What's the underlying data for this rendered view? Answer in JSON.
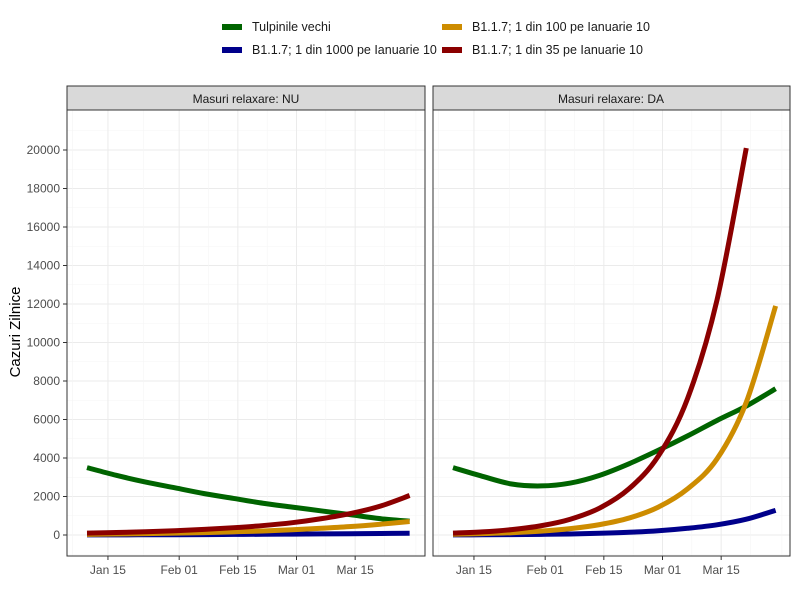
{
  "chart_data": {
    "type": "line",
    "title": "",
    "xlabel": "",
    "ylabel": "Cazuri Zilnice",
    "ylim": [
      -1000,
      21000
    ],
    "yticks": [
      0,
      2000,
      4000,
      6000,
      8000,
      10000,
      12000,
      14000,
      16000,
      18000,
      20000
    ],
    "xtick_labels": [
      "Jan 15",
      "Feb 01",
      "Feb 15",
      "Mar 01",
      "Mar 15"
    ],
    "xtick_days": [
      5,
      22,
      36,
      50,
      64
    ],
    "x_origin": "Jan 10",
    "x_unit": "days since Jan 10",
    "grid": true,
    "legend_position": "top",
    "legend": [
      {
        "name": "Tulpinile vechi",
        "color": "#006400"
      },
      {
        "name": "B1.1.7; 1 din 1000 pe Ianuarie 10",
        "color": "#00008B"
      },
      {
        "name": "B1.1.7; 1 din 100 pe Ianuarie 10",
        "color": "#CD8C00"
      },
      {
        "name": "B1.1.7; 1 din 35 pe Ianuarie 10",
        "color": "#8B0000"
      }
    ],
    "panels": [
      {
        "strip": "Masuri relaxare: NU",
        "x": [
          0,
          7,
          14,
          21,
          28,
          35,
          42,
          49,
          56,
          63,
          70,
          77
        ],
        "series": [
          {
            "name": "Tulpinile vechi",
            "color": "#006400",
            "values": [
              3500,
              3100,
              2750,
              2450,
              2150,
              1900,
              1650,
              1450,
              1250,
              1050,
              850,
              720
            ]
          },
          {
            "name": "B1.1.7; 1 din 1000 pe Ianuarie 10",
            "color": "#00008B",
            "values": [
              5,
              8,
              12,
              16,
              22,
              30,
              38,
              48,
              58,
              68,
              80,
              90
            ]
          },
          {
            "name": "B1.1.7; 1 din 100 pe Ianuarie 10",
            "color": "#CD8C00",
            "values": [
              35,
              50,
              70,
              95,
              125,
              165,
              210,
              270,
              350,
              440,
              560,
              700
            ]
          },
          {
            "name": "B1.1.7; 1 din 35 pe Ianuarie 10",
            "color": "#8B0000",
            "values": [
              100,
              130,
              170,
              220,
              290,
              380,
              490,
              640,
              850,
              1120,
              1500,
              2050
            ]
          }
        ]
      },
      {
        "strip": "Masuri relaxare: DA",
        "x": [
          0,
          7,
          14,
          21,
          28,
          35,
          42,
          49,
          56,
          63,
          70,
          77
        ],
        "series": [
          {
            "name": "Tulpinile vechi",
            "color": "#006400",
            "values": [
              3500,
              3050,
              2650,
              2550,
              2700,
              3100,
              3700,
              4400,
              5150,
              5950,
              6700,
              7600
            ]
          },
          {
            "name": "B1.1.7; 1 din 1000 pe Ianuarie 10",
            "color": "#00008B",
            "values": [
              5,
              10,
              20,
              35,
              55,
              90,
              140,
              220,
              350,
              530,
              820,
              1280
            ]
          },
          {
            "name": "B1.1.7; 1 din 100 pe Ianuarie 10",
            "color": "#CD8C00",
            "values": [
              40,
              70,
              120,
              200,
              330,
              540,
              880,
              1450,
              2400,
              3950,
              6900,
              11900
            ]
          },
          {
            "name": "B1.1.7; 1 din 35 pe Ianuarie 10",
            "color": "#8B0000",
            "values": [
              100,
              160,
              280,
              480,
              820,
              1400,
              2400,
              4100,
              7100,
              12200,
              20100
            ]
          }
        ]
      }
    ]
  },
  "legend": {
    "items": [
      {
        "label": "Tulpinile vechi",
        "color": "#006400"
      },
      {
        "label": "B1.1.7; 1 din 1000 pe Ianuarie 10",
        "color": "#00008B"
      },
      {
        "label": "B1.1.7; 1 din 100 pe Ianuarie 10",
        "color": "#CD8C00"
      },
      {
        "label": "B1.1.7; 1 din 35 pe Ianuarie 10",
        "color": "#8B0000"
      }
    ]
  },
  "panels": {
    "left": {
      "strip_label": "Masuri relaxare: NU"
    },
    "right": {
      "strip_label": "Masuri relaxare: DA"
    }
  },
  "axis": {
    "ylabel": "Cazuri Zilnice"
  }
}
